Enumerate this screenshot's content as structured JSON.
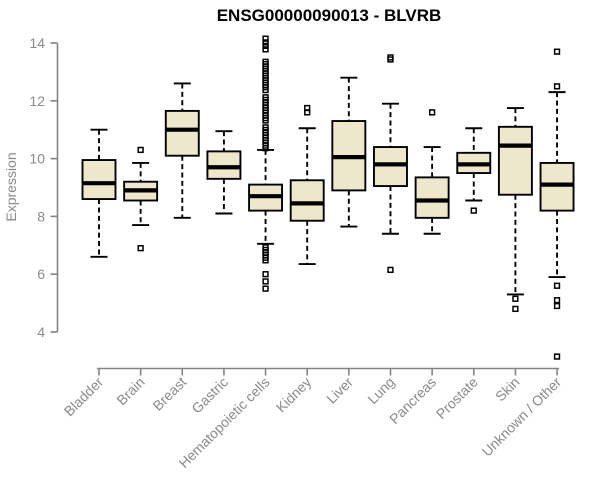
{
  "chart_data": {
    "type": "boxplot",
    "title": "ENSG00000090013 - BLVRB",
    "xlabel": "",
    "ylabel": "Expression",
    "ylim": [
      3.0,
      14.3
    ],
    "yticks": [
      4,
      6,
      8,
      10,
      12,
      14
    ],
    "grid": false,
    "legend": "none",
    "categories": [
      "Bladder",
      "Brain",
      "Breast",
      "Gastric",
      "Hematopoietic cells",
      "Kidney",
      "Liver",
      "Lung",
      "Pancreas",
      "Prostate",
      "Skin",
      "Unknown / Other"
    ],
    "series": [
      {
        "name": "Bladder",
        "low": 6.6,
        "q1": 8.6,
        "median": 9.15,
        "q3": 9.95,
        "high": 11.0,
        "outliers": []
      },
      {
        "name": "Brain",
        "low": 7.7,
        "q1": 8.55,
        "median": 8.9,
        "q3": 9.2,
        "high": 9.85,
        "outliers": [
          10.3,
          6.9
        ]
      },
      {
        "name": "Breast",
        "low": 7.95,
        "q1": 10.1,
        "median": 11.0,
        "q3": 11.65,
        "high": 12.6,
        "outliers": []
      },
      {
        "name": "Gastric",
        "low": 8.1,
        "q1": 9.3,
        "median": 9.7,
        "q3": 10.25,
        "high": 10.95,
        "outliers": []
      },
      {
        "name": "Hematopoietic cells",
        "low": 7.05,
        "q1": 8.2,
        "median": 8.7,
        "q3": 9.1,
        "high": 10.3,
        "outliers": [
          14.15,
          14.02,
          13.9,
          13.78,
          13.35,
          13.27,
          13.19,
          13.11,
          13.03,
          12.95,
          12.87,
          12.79,
          12.71,
          12.63,
          12.55,
          12.47,
          12.37,
          12.12,
          12.03,
          11.94,
          11.85,
          11.76,
          11.67,
          11.58,
          11.49,
          11.4,
          11.32,
          11.08,
          10.99,
          10.9,
          10.81,
          10.72,
          10.63,
          10.54,
          10.45,
          10.36,
          6.93,
          6.84,
          6.75,
          6.66,
          6.57,
          6.48,
          6.0,
          5.75,
          5.5
        ]
      },
      {
        "name": "Kidney",
        "low": 6.35,
        "q1": 7.85,
        "median": 8.45,
        "q3": 9.25,
        "high": 11.05,
        "outliers": [
          11.75,
          11.6
        ]
      },
      {
        "name": "Liver",
        "low": 7.65,
        "q1": 8.9,
        "median": 10.05,
        "q3": 11.3,
        "high": 12.8,
        "outliers": []
      },
      {
        "name": "Lung",
        "low": 7.4,
        "q1": 9.05,
        "median": 9.8,
        "q3": 10.4,
        "high": 11.9,
        "outliers": [
          13.5,
          13.43,
          6.15
        ]
      },
      {
        "name": "Pancreas",
        "low": 7.4,
        "q1": 7.95,
        "median": 8.55,
        "q3": 9.35,
        "high": 10.4,
        "outliers": [
          11.6
        ]
      },
      {
        "name": "Prostate",
        "low": 8.55,
        "q1": 9.5,
        "median": 9.8,
        "q3": 10.2,
        "high": 11.05,
        "outliers": [
          8.2
        ]
      },
      {
        "name": "Skin",
        "low": 5.3,
        "q1": 8.75,
        "median": 10.45,
        "q3": 11.1,
        "high": 11.75,
        "outliers": [
          5.15,
          4.8
        ]
      },
      {
        "name": "Unknown / Other",
        "low": 5.9,
        "q1": 8.2,
        "median": 9.1,
        "q3": 9.85,
        "high": 12.3,
        "outliers": [
          13.7,
          12.5,
          5.6,
          5.1,
          4.9,
          3.15
        ]
      }
    ],
    "colors": {
      "box_fill": "#EDE8CB",
      "box_border": "#000000",
      "median": "#000000",
      "whisker": "#000000",
      "outlier": "#000000",
      "axis": "#848484",
      "tick_label": "#8a8a8a",
      "title": "#000000",
      "background": "#ffffff"
    }
  }
}
